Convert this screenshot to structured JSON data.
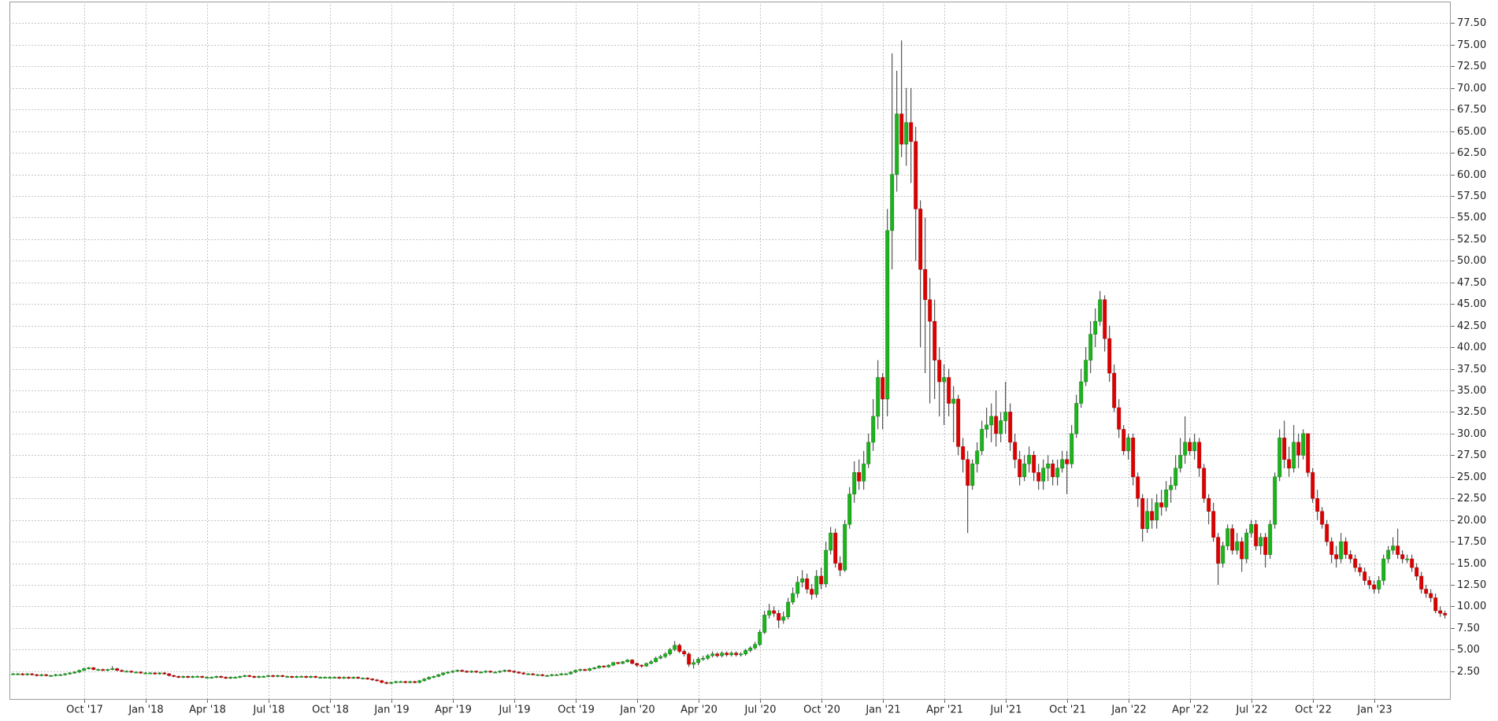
{
  "chart_data": {
    "type": "candlestick",
    "ylim": [
      -0.8,
      80
    ],
    "yticks": [
      {
        "value": 2.5,
        "label": "2.50"
      },
      {
        "value": 5,
        "label": "5.00"
      },
      {
        "value": 7.5,
        "label": "7.50"
      },
      {
        "value": 10,
        "label": "10.00"
      },
      {
        "value": 12.5,
        "label": "12.50"
      },
      {
        "value": 15,
        "label": "15.00"
      },
      {
        "value": 17.5,
        "label": "17.50"
      },
      {
        "value": 20,
        "label": "20.00"
      },
      {
        "value": 22.5,
        "label": "22.50"
      },
      {
        "value": 25,
        "label": "25.00"
      },
      {
        "value": 27.5,
        "label": "27.50"
      },
      {
        "value": 30,
        "label": "30.00"
      },
      {
        "value": 32.5,
        "label": "32.50"
      },
      {
        "value": 35,
        "label": "35.00"
      },
      {
        "value": 37.5,
        "label": "37.50"
      },
      {
        "value": 40,
        "label": "40.00"
      },
      {
        "value": 42.5,
        "label": "42.50"
      },
      {
        "value": 45,
        "label": "45.00"
      },
      {
        "value": 47.5,
        "label": "47.50"
      },
      {
        "value": 50,
        "label": "50.00"
      },
      {
        "value": 52.5,
        "label": "52.50"
      },
      {
        "value": 55,
        "label": "55.00"
      },
      {
        "value": 57.5,
        "label": "57.50"
      },
      {
        "value": 60,
        "label": "60.00"
      },
      {
        "value": 62.5,
        "label": "62.50"
      },
      {
        "value": 65,
        "label": "65.00"
      },
      {
        "value": 67.5,
        "label": "67.50"
      },
      {
        "value": 70,
        "label": "70.00"
      },
      {
        "value": 72.5,
        "label": "72.50"
      },
      {
        "value": 75,
        "label": "75.00"
      },
      {
        "value": 77.5,
        "label": "77.50"
      }
    ],
    "grid": true,
    "up_color": "#1db31d",
    "down_color": "#dd0000",
    "categories": [
      null,
      null,
      null,
      null,
      null,
      null,
      null,
      null,
      null,
      null,
      null,
      null,
      null,
      null,
      null,
      "Oct '17",
      null,
      null,
      null,
      null,
      null,
      null,
      null,
      null,
      null,
      null,
      null,
      null,
      "Jan '18",
      null,
      null,
      null,
      null,
      null,
      null,
      null,
      null,
      null,
      null,
      null,
      null,
      "Apr '18",
      null,
      null,
      null,
      null,
      null,
      null,
      null,
      null,
      null,
      null,
      null,
      null,
      "Jul '18",
      null,
      null,
      null,
      null,
      null,
      null,
      null,
      null,
      null,
      null,
      null,
      null,
      "Oct '18",
      null,
      null,
      null,
      null,
      null,
      null,
      null,
      null,
      null,
      null,
      null,
      null,
      "Jan '19",
      null,
      null,
      null,
      null,
      null,
      null,
      null,
      null,
      null,
      null,
      null,
      null,
      "Apr '19",
      null,
      null,
      null,
      null,
      null,
      null,
      null,
      null,
      null,
      null,
      null,
      null,
      "Jul '19",
      null,
      null,
      null,
      null,
      null,
      null,
      null,
      null,
      null,
      null,
      null,
      null,
      "Oct '19",
      null,
      null,
      null,
      null,
      null,
      null,
      null,
      null,
      null,
      null,
      null,
      null,
      "Jan '20",
      null,
      null,
      null,
      null,
      null,
      null,
      null,
      null,
      null,
      null,
      null,
      null,
      "Apr '20",
      null,
      null,
      null,
      null,
      null,
      null,
      null,
      null,
      null,
      null,
      null,
      null,
      "Jul '20",
      null,
      null,
      null,
      null,
      null,
      null,
      null,
      null,
      null,
      null,
      null,
      null,
      "Oct '20",
      null,
      null,
      null,
      null,
      null,
      null,
      null,
      null,
      null,
      null,
      null,
      null,
      "Jan '21",
      null,
      null,
      null,
      null,
      null,
      null,
      null,
      null,
      null,
      null,
      null,
      null,
      "Apr '21",
      null,
      null,
      null,
      null,
      null,
      null,
      null,
      null,
      null,
      null,
      null,
      null,
      "Jul '21",
      null,
      null,
      null,
      null,
      null,
      null,
      null,
      null,
      null,
      null,
      null,
      null,
      "Oct '21",
      null,
      null,
      null,
      null,
      null,
      null,
      null,
      null,
      null,
      null,
      null,
      null,
      "Jan '22",
      null,
      null,
      null,
      null,
      null,
      null,
      null,
      null,
      null,
      null,
      null,
      null,
      "Apr '22",
      null,
      null,
      null,
      null,
      null,
      null,
      null,
      null,
      null,
      null,
      null,
      null,
      "Jul '22",
      null,
      null,
      null,
      null,
      null,
      null,
      null,
      null,
      null,
      null,
      null,
      null,
      "Oct '22",
      null,
      null,
      null,
      null,
      null,
      null,
      null,
      null,
      null,
      null,
      null,
      null,
      "Jan '23",
      null,
      null,
      null,
      null,
      null,
      null,
      null,
      null,
      null,
      null,
      null,
      null,
      null,
      null,
      null
    ],
    "open": [
      2.2,
      2.2,
      2.2,
      2.1,
      2.2,
      2.1,
      2.0,
      2.1,
      2.0,
      2.0,
      2.1,
      2.1,
      2.2,
      2.3,
      2.4,
      2.6,
      2.8,
      2.9,
      2.7,
      2.7,
      2.6,
      2.7,
      2.8,
      2.6,
      2.5,
      2.5,
      2.4,
      2.4,
      2.3,
      2.3,
      2.3,
      2.2,
      2.3,
      2.2,
      2.0,
      1.9,
      1.8,
      1.9,
      1.8,
      1.9,
      1.9,
      1.8,
      1.8,
      1.8,
      1.9,
      1.8,
      1.7,
      1.8,
      1.8,
      1.9,
      2.0,
      1.9,
      1.8,
      1.9,
      1.9,
      2.0,
      1.9,
      2.0,
      1.9,
      1.9,
      1.8,
      1.9,
      1.9,
      1.8,
      1.9,
      1.8,
      1.8,
      1.8,
      1.8,
      1.8,
      1.7,
      1.8,
      1.7,
      1.8,
      1.7,
      1.7,
      1.6,
      1.5,
      1.4,
      1.2,
      1.1,
      1.2,
      1.3,
      1.3,
      1.2,
      1.3,
      1.2,
      1.4,
      1.6,
      1.8,
      1.9,
      2.1,
      2.3,
      2.4,
      2.5,
      2.6,
      2.5,
      2.4,
      2.5,
      2.4,
      2.4,
      2.5,
      2.4,
      2.4,
      2.5,
      2.6,
      2.5,
      2.4,
      2.3,
      2.2,
      2.2,
      2.1,
      2.1,
      2.0,
      2.0,
      2.1,
      2.1,
      2.2,
      2.2,
      2.4,
      2.6,
      2.7,
      2.6,
      2.8,
      2.9,
      3.1,
      3.0,
      3.2,
      3.5,
      3.4,
      3.6,
      3.8,
      3.4,
      3.2,
      3.1,
      3.4,
      3.6,
      4.0,
      4.2,
      4.5,
      5.0,
      5.5,
      4.8,
      4.5,
      3.3,
      3.5,
      3.9,
      4.0,
      4.3,
      4.5,
      4.3,
      4.6,
      4.4,
      4.6,
      4.4,
      4.5,
      4.9,
      5.2,
      5.6,
      7.0,
      9.0,
      9.5,
      9.2,
      8.4,
      8.8,
      10.5,
      11.5,
      12.8,
      13.2,
      12.0,
      11.4,
      13.5,
      12.6,
      16.5,
      18.5,
      15.0,
      14.2,
      19.5,
      23.0,
      25.5,
      24.5,
      26.5,
      29.0,
      32.0,
      36.5,
      34.0,
      53.5,
      60.0,
      67.0,
      63.5,
      66.0,
      63.8,
      56.0,
      49.0,
      45.5,
      43.0,
      38.5,
      36.0,
      36.5,
      33.5,
      34.0,
      28.5,
      27.0,
      24.0,
      26.5,
      28.0,
      30.5,
      31.0,
      32.0,
      30.0,
      31.5,
      32.5,
      29.0,
      27.0,
      25.0,
      26.5,
      27.5,
      25.5,
      24.5,
      26.0,
      26.5,
      25.0,
      26.0,
      27.0,
      26.5,
      30.0,
      33.5,
      36.0,
      38.5,
      41.5,
      43.0,
      45.5,
      41.0,
      37.0,
      33.0,
      30.5,
      28.0,
      29.5,
      25.0,
      22.5,
      19.0,
      21.0,
      20.0,
      22.0,
      21.5,
      23.5,
      24.0,
      26.0,
      27.5,
      29.0,
      28.0,
      29.0,
      26.0,
      22.5,
      21.0,
      18.0,
      15.0,
      17.0,
      19.0,
      16.5,
      17.5,
      15.5,
      18.5,
      19.5,
      17.0,
      18.0,
      16.0,
      19.5,
      25.0,
      29.5,
      27.0,
      26.0,
      29.0,
      27.5,
      30.0,
      25.5,
      22.5,
      21.0,
      19.5,
      17.5,
      16.0,
      15.5,
      17.5,
      16.0,
      15.5,
      14.5,
      14.0,
      13.0,
      12.5,
      12.0,
      13.0,
      15.5,
      16.5,
      17.0,
      16.0,
      15.5,
      15.5,
      14.5,
      13.5,
      12.0,
      11.5,
      11.0,
      9.5,
      9.2
    ],
    "high": [
      2.3,
      2.3,
      2.3,
      2.3,
      2.3,
      2.2,
      2.2,
      2.2,
      2.1,
      2.2,
      2.2,
      2.3,
      2.4,
      2.5,
      2.7,
      2.9,
      3.0,
      3.0,
      2.8,
      2.8,
      2.8,
      3.1,
      2.9,
      2.7,
      2.6,
      2.6,
      2.5,
      2.5,
      2.4,
      2.4,
      2.4,
      2.4,
      2.4,
      2.3,
      2.1,
      2.0,
      2.0,
      2.0,
      2.0,
      2.0,
      2.0,
      1.9,
      1.9,
      2.0,
      2.0,
      1.9,
      1.9,
      1.9,
      2.0,
      2.1,
      2.1,
      2.0,
      2.0,
      2.0,
      2.1,
      2.1,
      2.1,
      2.1,
      2.0,
      2.0,
      2.0,
      2.0,
      2.0,
      2.0,
      2.0,
      1.9,
      1.9,
      1.9,
      1.9,
      1.9,
      1.9,
      1.9,
      1.9,
      1.9,
      1.8,
      1.8,
      1.7,
      1.6,
      1.5,
      1.3,
      1.3,
      1.4,
      1.4,
      1.4,
      1.4,
      1.4,
      1.5,
      1.7,
      1.9,
      2.0,
      2.2,
      2.4,
      2.5,
      2.6,
      2.7,
      2.7,
      2.6,
      2.6,
      2.6,
      2.5,
      2.6,
      2.6,
      2.5,
      2.6,
      2.7,
      2.7,
      2.6,
      2.5,
      2.4,
      2.3,
      2.3,
      2.2,
      2.2,
      2.1,
      2.2,
      2.2,
      2.3,
      2.3,
      2.5,
      2.7,
      2.8,
      2.8,
      2.9,
      3.0,
      3.2,
      3.2,
      3.3,
      3.6,
      3.6,
      3.7,
      3.9,
      3.9,
      3.5,
      3.3,
      3.5,
      3.8,
      4.2,
      4.4,
      4.7,
      5.2,
      6.0,
      5.7,
      5.0,
      4.7,
      3.9,
      4.1,
      4.3,
      4.5,
      4.8,
      4.7,
      4.8,
      4.8,
      4.8,
      4.8,
      4.7,
      5.1,
      5.4,
      5.9,
      7.3,
      9.5,
      10.3,
      10.0,
      9.6,
      9.4,
      11.0,
      12.2,
      13.5,
      14.2,
      13.8,
      12.6,
      14.2,
      14.5,
      17.5,
      19.2,
      19.0,
      15.8,
      20.0,
      23.8,
      26.8,
      27.0,
      28.0,
      30.0,
      34.0,
      38.5,
      37.0,
      56.0,
      74.0,
      72.0,
      75.5,
      70.0,
      70.0,
      65.5,
      57.0,
      55.0,
      48.0,
      45.5,
      40.0,
      38.0,
      37.5,
      35.5,
      34.5,
      29.5,
      28.0,
      27.0,
      29.0,
      31.5,
      33.0,
      33.5,
      35.0,
      32.5,
      36.0,
      33.5,
      30.0,
      28.0,
      27.5,
      28.5,
      28.0,
      26.5,
      27.0,
      27.5,
      27.0,
      27.0,
      28.0,
      28.0,
      31.0,
      34.5,
      37.5,
      40.0,
      43.0,
      44.5,
      46.5,
      46.0,
      42.5,
      38.0,
      34.0,
      31.0,
      30.0,
      30.0,
      25.5,
      23.0,
      22.5,
      22.5,
      23.0,
      23.5,
      24.5,
      25.0,
      27.5,
      29.5,
      32.0,
      29.5,
      30.0,
      29.5,
      26.5,
      23.0,
      22.0,
      18.5,
      17.5,
      19.5,
      19.5,
      18.5,
      18.0,
      19.0,
      20.0,
      20.0,
      18.5,
      18.5,
      20.0,
      25.5,
      30.5,
      31.5,
      28.5,
      31.0,
      30.0,
      30.5,
      30.0,
      26.0,
      23.5,
      21.5,
      20.0,
      18.0,
      17.0,
      18.5,
      18.0,
      16.5,
      16.0,
      15.0,
      14.5,
      13.5,
      13.0,
      13.5,
      16.0,
      17.0,
      18.0,
      19.0,
      16.5,
      16.0,
      16.0,
      15.0,
      14.0,
      12.5,
      12.0,
      11.5,
      10.0,
      9.5
    ],
    "low": [
      2.1,
      2.1,
      2.0,
      2.0,
      2.0,
      1.9,
      1.9,
      1.9,
      1.9,
      1.9,
      2.0,
      2.0,
      2.1,
      2.2,
      2.3,
      2.5,
      2.7,
      2.6,
      2.6,
      2.5,
      2.5,
      2.6,
      2.5,
      2.4,
      2.4,
      2.3,
      2.3,
      2.2,
      2.2,
      2.2,
      2.1,
      2.1,
      2.1,
      1.9,
      1.8,
      1.7,
      1.7,
      1.7,
      1.7,
      1.8,
      1.7,
      1.7,
      1.7,
      1.7,
      1.7,
      1.6,
      1.6,
      1.7,
      1.7,
      1.8,
      1.8,
      1.7,
      1.7,
      1.8,
      1.8,
      1.8,
      1.8,
      1.8,
      1.8,
      1.7,
      1.7,
      1.8,
      1.7,
      1.7,
      1.7,
      1.7,
      1.7,
      1.7,
      1.7,
      1.6,
      1.6,
      1.6,
      1.6,
      1.6,
      1.6,
      1.5,
      1.4,
      1.3,
      1.1,
      1.0,
      1.0,
      1.1,
      1.2,
      1.1,
      1.1,
      1.1,
      1.1,
      1.3,
      1.5,
      1.7,
      1.8,
      2.0,
      2.2,
      2.3,
      2.4,
      2.4,
      2.3,
      2.3,
      2.3,
      2.3,
      2.3,
      2.3,
      2.3,
      2.3,
      2.4,
      2.4,
      2.3,
      2.2,
      2.1,
      2.1,
      2.0,
      2.0,
      1.9,
      1.9,
      1.9,
      2.0,
      2.0,
      2.1,
      2.1,
      2.3,
      2.5,
      2.5,
      2.5,
      2.7,
      2.8,
      2.9,
      2.9,
      3.1,
      3.3,
      3.3,
      3.5,
      3.3,
      3.0,
      2.9,
      3.0,
      3.3,
      3.5,
      3.9,
      4.0,
      4.3,
      4.8,
      4.6,
      4.2,
      3.0,
      2.8,
      3.2,
      3.7,
      3.8,
      4.1,
      4.1,
      4.1,
      4.2,
      4.2,
      4.2,
      4.2,
      4.3,
      4.7,
      5.0,
      5.4,
      6.8,
      8.6,
      8.8,
      7.5,
      8.0,
      8.5,
      10.2,
      11.0,
      12.2,
      11.5,
      10.8,
      11.0,
      12.0,
      12.2,
      16.0,
      14.5,
      13.5,
      14.0,
      19.0,
      22.0,
      23.5,
      23.5,
      26.0,
      28.0,
      30.5,
      30.5,
      32.0,
      49.0,
      58.0,
      62.0,
      61.0,
      59.0,
      50.0,
      40.0,
      37.0,
      33.5,
      34.0,
      32.0,
      31.0,
      32.0,
      29.0,
      27.5,
      25.5,
      18.5,
      23.5,
      25.5,
      27.5,
      29.5,
      29.0,
      28.5,
      29.0,
      30.0,
      28.0,
      26.0,
      24.0,
      24.5,
      25.5,
      24.5,
      23.5,
      23.5,
      24.5,
      24.0,
      24.0,
      25.5,
      23.0,
      26.0,
      29.5,
      33.0,
      35.5,
      37.0,
      40.0,
      42.5,
      39.5,
      36.0,
      32.5,
      29.5,
      27.5,
      27.0,
      24.0,
      21.5,
      17.5,
      18.5,
      19.0,
      19.0,
      20.5,
      21.0,
      22.0,
      23.5,
      25.5,
      26.5,
      27.5,
      27.0,
      25.0,
      22.0,
      19.5,
      17.5,
      12.5,
      14.5,
      16.5,
      16.0,
      16.0,
      14.0,
      15.0,
      18.0,
      16.5,
      16.0,
      14.5,
      15.5,
      19.0,
      24.5,
      26.0,
      25.0,
      25.5,
      26.0,
      27.0,
      25.0,
      22.0,
      20.0,
      19.0,
      17.0,
      15.0,
      14.5,
      15.0,
      15.5,
      15.0,
      14.0,
      13.5,
      12.5,
      12.0,
      11.5,
      11.5,
      12.5,
      15.0,
      16.0,
      15.5,
      15.0,
      15.0,
      14.0,
      13.0,
      11.5,
      11.0,
      10.5,
      9.2,
      8.8,
      8.6
    ],
    "close": [
      2.2,
      2.2,
      2.1,
      2.2,
      2.1,
      2.0,
      2.1,
      2.0,
      2.0,
      2.1,
      2.1,
      2.2,
      2.3,
      2.4,
      2.6,
      2.8,
      2.9,
      2.7,
      2.7,
      2.6,
      2.7,
      2.8,
      2.6,
      2.5,
      2.5,
      2.4,
      2.4,
      2.3,
      2.3,
      2.3,
      2.2,
      2.3,
      2.2,
      2.0,
      1.9,
      1.8,
      1.9,
      1.8,
      1.9,
      1.9,
      1.8,
      1.8,
      1.8,
      1.9,
      1.8,
      1.7,
      1.8,
      1.8,
      1.9,
      2.0,
      1.9,
      1.8,
      1.9,
      1.9,
      2.0,
      1.9,
      2.0,
      1.9,
      1.9,
      1.8,
      1.9,
      1.9,
      1.8,
      1.9,
      1.8,
      1.8,
      1.8,
      1.8,
      1.8,
      1.7,
      1.8,
      1.7,
      1.8,
      1.7,
      1.7,
      1.6,
      1.5,
      1.4,
      1.2,
      1.1,
      1.2,
      1.3,
      1.3,
      1.2,
      1.3,
      1.2,
      1.4,
      1.6,
      1.8,
      1.9,
      2.1,
      2.3,
      2.4,
      2.5,
      2.6,
      2.5,
      2.4,
      2.5,
      2.4,
      2.4,
      2.5,
      2.4,
      2.4,
      2.5,
      2.6,
      2.5,
      2.4,
      2.3,
      2.2,
      2.2,
      2.1,
      2.1,
      2.0,
      2.0,
      2.1,
      2.1,
      2.2,
      2.2,
      2.4,
      2.6,
      2.7,
      2.6,
      2.8,
      2.9,
      3.1,
      3.0,
      3.2,
      3.5,
      3.4,
      3.6,
      3.8,
      3.4,
      3.2,
      3.1,
      3.4,
      3.6,
      4.0,
      4.2,
      4.5,
      5.0,
      5.5,
      4.8,
      4.5,
      3.3,
      3.5,
      3.9,
      4.0,
      4.3,
      4.5,
      4.3,
      4.6,
      4.4,
      4.6,
      4.4,
      4.5,
      4.9,
      5.2,
      5.6,
      7.0,
      9.0,
      9.5,
      9.2,
      8.4,
      8.8,
      10.5,
      11.5,
      12.8,
      13.2,
      12.0,
      11.4,
      13.5,
      12.6,
      16.5,
      18.5,
      15.0,
      14.2,
      19.5,
      23.0,
      25.5,
      24.5,
      26.5,
      29.0,
      32.0,
      36.5,
      34.0,
      53.5,
      60.0,
      67.0,
      63.5,
      66.0,
      63.8,
      56.0,
      49.0,
      45.5,
      43.0,
      38.5,
      36.0,
      36.5,
      33.5,
      34.0,
      28.5,
      27.0,
      24.0,
      26.5,
      28.0,
      30.5,
      31.0,
      32.0,
      30.0,
      31.5,
      32.5,
      29.0,
      27.0,
      25.0,
      26.5,
      27.5,
      25.5,
      24.5,
      26.0,
      26.5,
      25.0,
      26.0,
      27.0,
      26.5,
      30.0,
      33.5,
      36.0,
      38.5,
      41.5,
      43.0,
      45.5,
      41.0,
      37.0,
      33.0,
      30.5,
      28.0,
      29.5,
      25.0,
      22.5,
      19.0,
      21.0,
      20.0,
      22.0,
      21.5,
      23.5,
      24.0,
      26.0,
      27.5,
      29.0,
      28.0,
      29.0,
      26.0,
      22.5,
      21.0,
      18.0,
      15.0,
      17.0,
      19.0,
      16.5,
      17.5,
      15.5,
      18.5,
      19.5,
      17.0,
      18.0,
      16.0,
      19.5,
      25.0,
      29.5,
      27.0,
      26.0,
      29.0,
      27.5,
      30.0,
      25.5,
      22.5,
      21.0,
      19.5,
      17.5,
      16.0,
      15.5,
      17.5,
      16.0,
      15.5,
      14.5,
      14.0,
      13.0,
      12.5,
      12.0,
      13.0,
      15.5,
      16.5,
      17.0,
      16.0,
      15.5,
      15.5,
      14.5,
      13.5,
      12.0,
      11.5,
      11.0,
      9.5,
      9.2,
      9.0
    ]
  }
}
